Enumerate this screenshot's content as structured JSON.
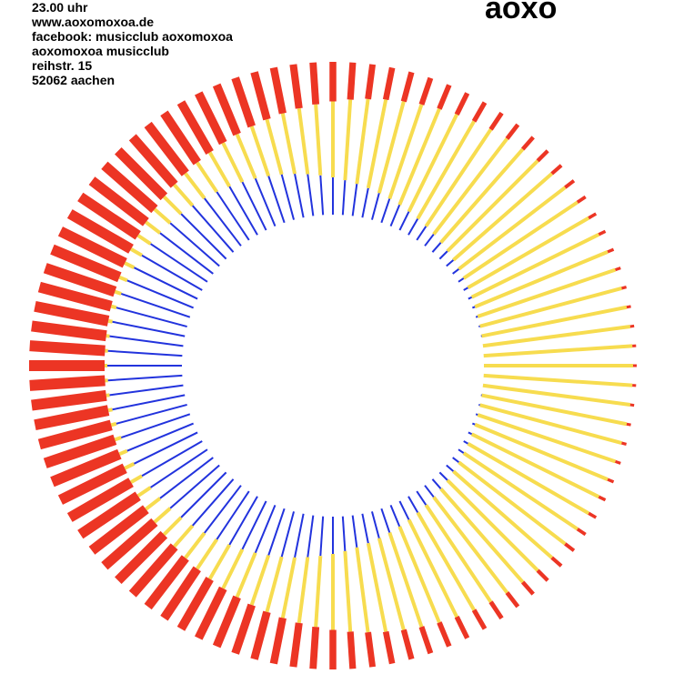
{
  "info": {
    "lines": [
      "23.00 uhr",
      "www.aoxomoxoa.de",
      "facebook: musicclub aoxomoxoa",
      "aoxomoxoa musicclub",
      "reihstr. 15",
      "52062 aachen"
    ]
  },
  "logo": "aoxo"
}
